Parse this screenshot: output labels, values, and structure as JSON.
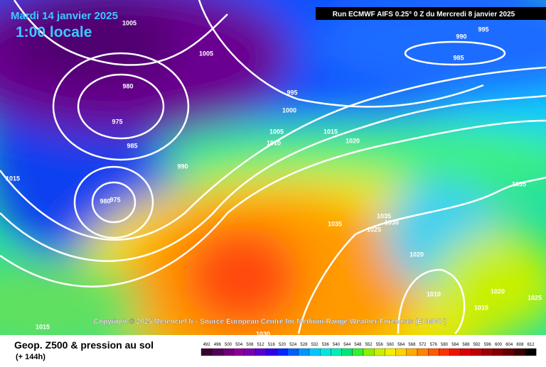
{
  "header": {
    "date": "Mardi 14 janvier 2025",
    "time": "1:00 locale",
    "run": "Run ECMWF AIFS 0.25° 0 Z du Mercredi 8 janvier 2025"
  },
  "copyright": "Copyright © 2025 Meteociel.fr - Source European Centre for Medium-Range Weather Forecasts (ECMWF)",
  "isobars": [
    1005,
    1005,
    980,
    975,
    985,
    995,
    1000,
    1005,
    1015,
    1010,
    1020,
    990,
    1015,
    980,
    975,
    990,
    985,
    995,
    1035,
    1035,
    1035,
    1030,
    1025,
    1020,
    1010,
    1020,
    1015,
    1025,
    1015,
    1030
  ],
  "footer": {
    "title": "Geop. Z500 & pression au sol",
    "subtitle": "(+ 144h)"
  },
  "legend": {
    "values": [
      492,
      496,
      500,
      504,
      508,
      512,
      516,
      520,
      524,
      528,
      532,
      536,
      540,
      544,
      548,
      552,
      556,
      560,
      564,
      568,
      572,
      576,
      580,
      584,
      588,
      592,
      596,
      600,
      604,
      608,
      612
    ],
    "colors": [
      "#3a0032",
      "#55005a",
      "#6e0078",
      "#8c0096",
      "#7800b4",
      "#5a00d0",
      "#3200f0",
      "#0028ff",
      "#0060ff",
      "#0096ff",
      "#00c8ff",
      "#00e6e6",
      "#00f0b4",
      "#00e678",
      "#32f032",
      "#8cf000",
      "#c8f000",
      "#f0f000",
      "#ffd200",
      "#ffaa00",
      "#ff8200",
      "#ff5a00",
      "#ff3200",
      "#f01400",
      "#dc0000",
      "#be0000",
      "#a00000",
      "#820000",
      "#640000",
      "#3c0000",
      "#000000"
    ]
  }
}
